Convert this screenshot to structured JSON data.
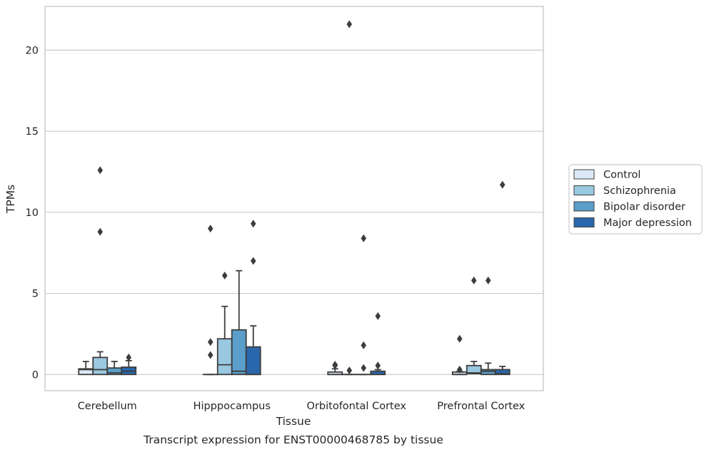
{
  "chart_data": {
    "type": "box",
    "title": "",
    "caption": "Transcript expression for ENST00000468785 by tissue",
    "xlabel": "Tissue",
    "ylabel": "TPMs",
    "ylim": [
      -1,
      22.7
    ],
    "yticks": [
      0,
      5,
      10,
      15,
      20
    ],
    "grid": "horizontal",
    "legend_position": "right-center",
    "categories": [
      "Cerebellum",
      "Hipppocampus",
      "Orbitofontal Cortex",
      "Prefrontal Cortex"
    ],
    "series": [
      {
        "name": "Control",
        "color": "#dbe9f6",
        "boxes": [
          {
            "q1": 0.0,
            "median": 0.3,
            "q3": 0.35,
            "whisker_low": 0.0,
            "whisker_high": 0.8,
            "outliers": []
          },
          {
            "q1": 0.0,
            "median": 0.0,
            "q3": 0.0,
            "whisker_low": 0.0,
            "whisker_high": 0.0,
            "outliers": [
              1.2,
              2.0,
              9.0
            ]
          },
          {
            "q1": 0.0,
            "median": 0.0,
            "q3": 0.15,
            "whisker_low": 0.0,
            "whisker_high": 0.35,
            "outliers": [
              0.6,
              0.55
            ]
          },
          {
            "q1": 0.0,
            "median": 0.0,
            "q3": 0.15,
            "whisker_low": 0.0,
            "whisker_high": 0.2,
            "outliers": [
              0.3,
              2.2
            ]
          }
        ]
      },
      {
        "name": "Schizophrenia",
        "color": "#9ac8e0",
        "boxes": [
          {
            "q1": 0.0,
            "median": 0.3,
            "q3": 1.05,
            "whisker_low": 0.0,
            "whisker_high": 1.4,
            "outliers": [
              8.8,
              12.6
            ]
          },
          {
            "q1": 0.0,
            "median": 0.6,
            "q3": 2.2,
            "whisker_low": 0.0,
            "whisker_high": 4.2,
            "outliers": [
              6.1
            ]
          },
          {
            "q1": 0.0,
            "median": 0.0,
            "q3": 0.0,
            "whisker_low": 0.0,
            "whisker_high": 0.0,
            "outliers": [
              0.25,
              21.6
            ]
          },
          {
            "q1": 0.05,
            "median": 0.1,
            "q3": 0.55,
            "whisker_low": 0.0,
            "whisker_high": 0.8,
            "outliers": [
              5.8
            ]
          }
        ]
      },
      {
        "name": "Bipolar disorder",
        "color": "#5a9ec9",
        "boxes": [
          {
            "q1": 0.0,
            "median": 0.1,
            "q3": 0.4,
            "whisker_low": 0.0,
            "whisker_high": 0.8,
            "outliers": []
          },
          {
            "q1": 0.0,
            "median": 0.2,
            "q3": 2.75,
            "whisker_low": 0.0,
            "whisker_high": 6.4,
            "outliers": []
          },
          {
            "q1": 0.0,
            "median": 0.0,
            "q3": 0.0,
            "whisker_low": 0.0,
            "whisker_high": 0.0,
            "outliers": [
              0.4,
              1.8,
              8.4
            ]
          },
          {
            "q1": 0.0,
            "median": 0.2,
            "q3": 0.3,
            "whisker_low": 0.0,
            "whisker_high": 0.7,
            "outliers": [
              5.8
            ]
          }
        ]
      },
      {
        "name": "Major depression",
        "color": "#2967ac",
        "boxes": [
          {
            "q1": 0.0,
            "median": 0.2,
            "q3": 0.45,
            "whisker_low": 0.0,
            "whisker_high": 0.85,
            "outliers": [
              1.05
            ]
          },
          {
            "q1": 0.0,
            "median": 0.0,
            "q3": 1.7,
            "whisker_low": 0.0,
            "whisker_high": 3.0,
            "outliers": [
              7.0,
              9.3
            ]
          },
          {
            "q1": 0.0,
            "median": 0.0,
            "q3": 0.2,
            "whisker_low": 0.0,
            "whisker_high": 0.3,
            "outliers": [
              0.55,
              3.6
            ]
          },
          {
            "q1": 0.0,
            "median": 0.05,
            "q3": 0.3,
            "whisker_low": 0.0,
            "whisker_high": 0.5,
            "outliers": [
              11.7
            ]
          }
        ]
      }
    ]
  }
}
